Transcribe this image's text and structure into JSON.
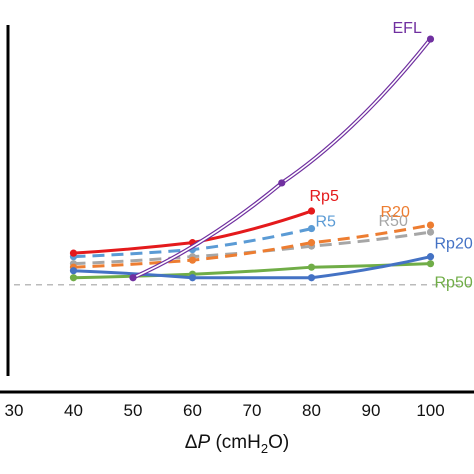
{
  "chart_data": {
    "type": "line",
    "title": "",
    "xlabel": {
      "delta": "Δ",
      "var": "P",
      "pre": " (cmH",
      "sub": "2",
      "post": "O)"
    },
    "ylabel": "",
    "xlim": [
      30,
      105
    ],
    "ylim": [
      0,
      1
    ],
    "x_ticks": [
      "30",
      "40",
      "50",
      "60",
      "70",
      "80",
      "90",
      "100"
    ],
    "y_ticks_shown": false,
    "grid": false,
    "reference_line": {
      "y": 0.26,
      "style": "dashed",
      "color": "#bbbbbb"
    },
    "series": [
      {
        "name": "EFL",
        "color": "#7030a0",
        "style": "double",
        "x": [
          50,
          75,
          100
        ],
        "y": [
          0.28,
          0.55,
          0.96
        ]
      },
      {
        "name": "Rp5",
        "color": "#e41a1c",
        "style": "solid",
        "x": [
          40,
          60,
          80
        ],
        "y": [
          0.35,
          0.38,
          0.47
        ]
      },
      {
        "name": "R5",
        "color": "#5b9bd5",
        "style": "dashed",
        "x": [
          40,
          60,
          80
        ],
        "y": [
          0.34,
          0.36,
          0.42
        ]
      },
      {
        "name": "R20",
        "color": "#ed7d31",
        "style": "dashed",
        "x": [
          40,
          60,
          80,
          100
        ],
        "y": [
          0.31,
          0.33,
          0.38,
          0.43
        ]
      },
      {
        "name": "R50",
        "color": "#a6a6a6",
        "style": "dashed",
        "x": [
          40,
          60,
          80,
          100
        ],
        "y": [
          0.32,
          0.34,
          0.37,
          0.41
        ]
      },
      {
        "name": "Rp20",
        "color": "#4472c4",
        "style": "solid",
        "x": [
          40,
          60,
          80,
          100
        ],
        "y": [
          0.3,
          0.28,
          0.28,
          0.34
        ]
      },
      {
        "name": "Rp50",
        "color": "#70ad47",
        "style": "solid",
        "x": [
          40,
          60,
          80,
          100
        ],
        "y": [
          0.28,
          0.29,
          0.31,
          0.32
        ]
      }
    ]
  }
}
